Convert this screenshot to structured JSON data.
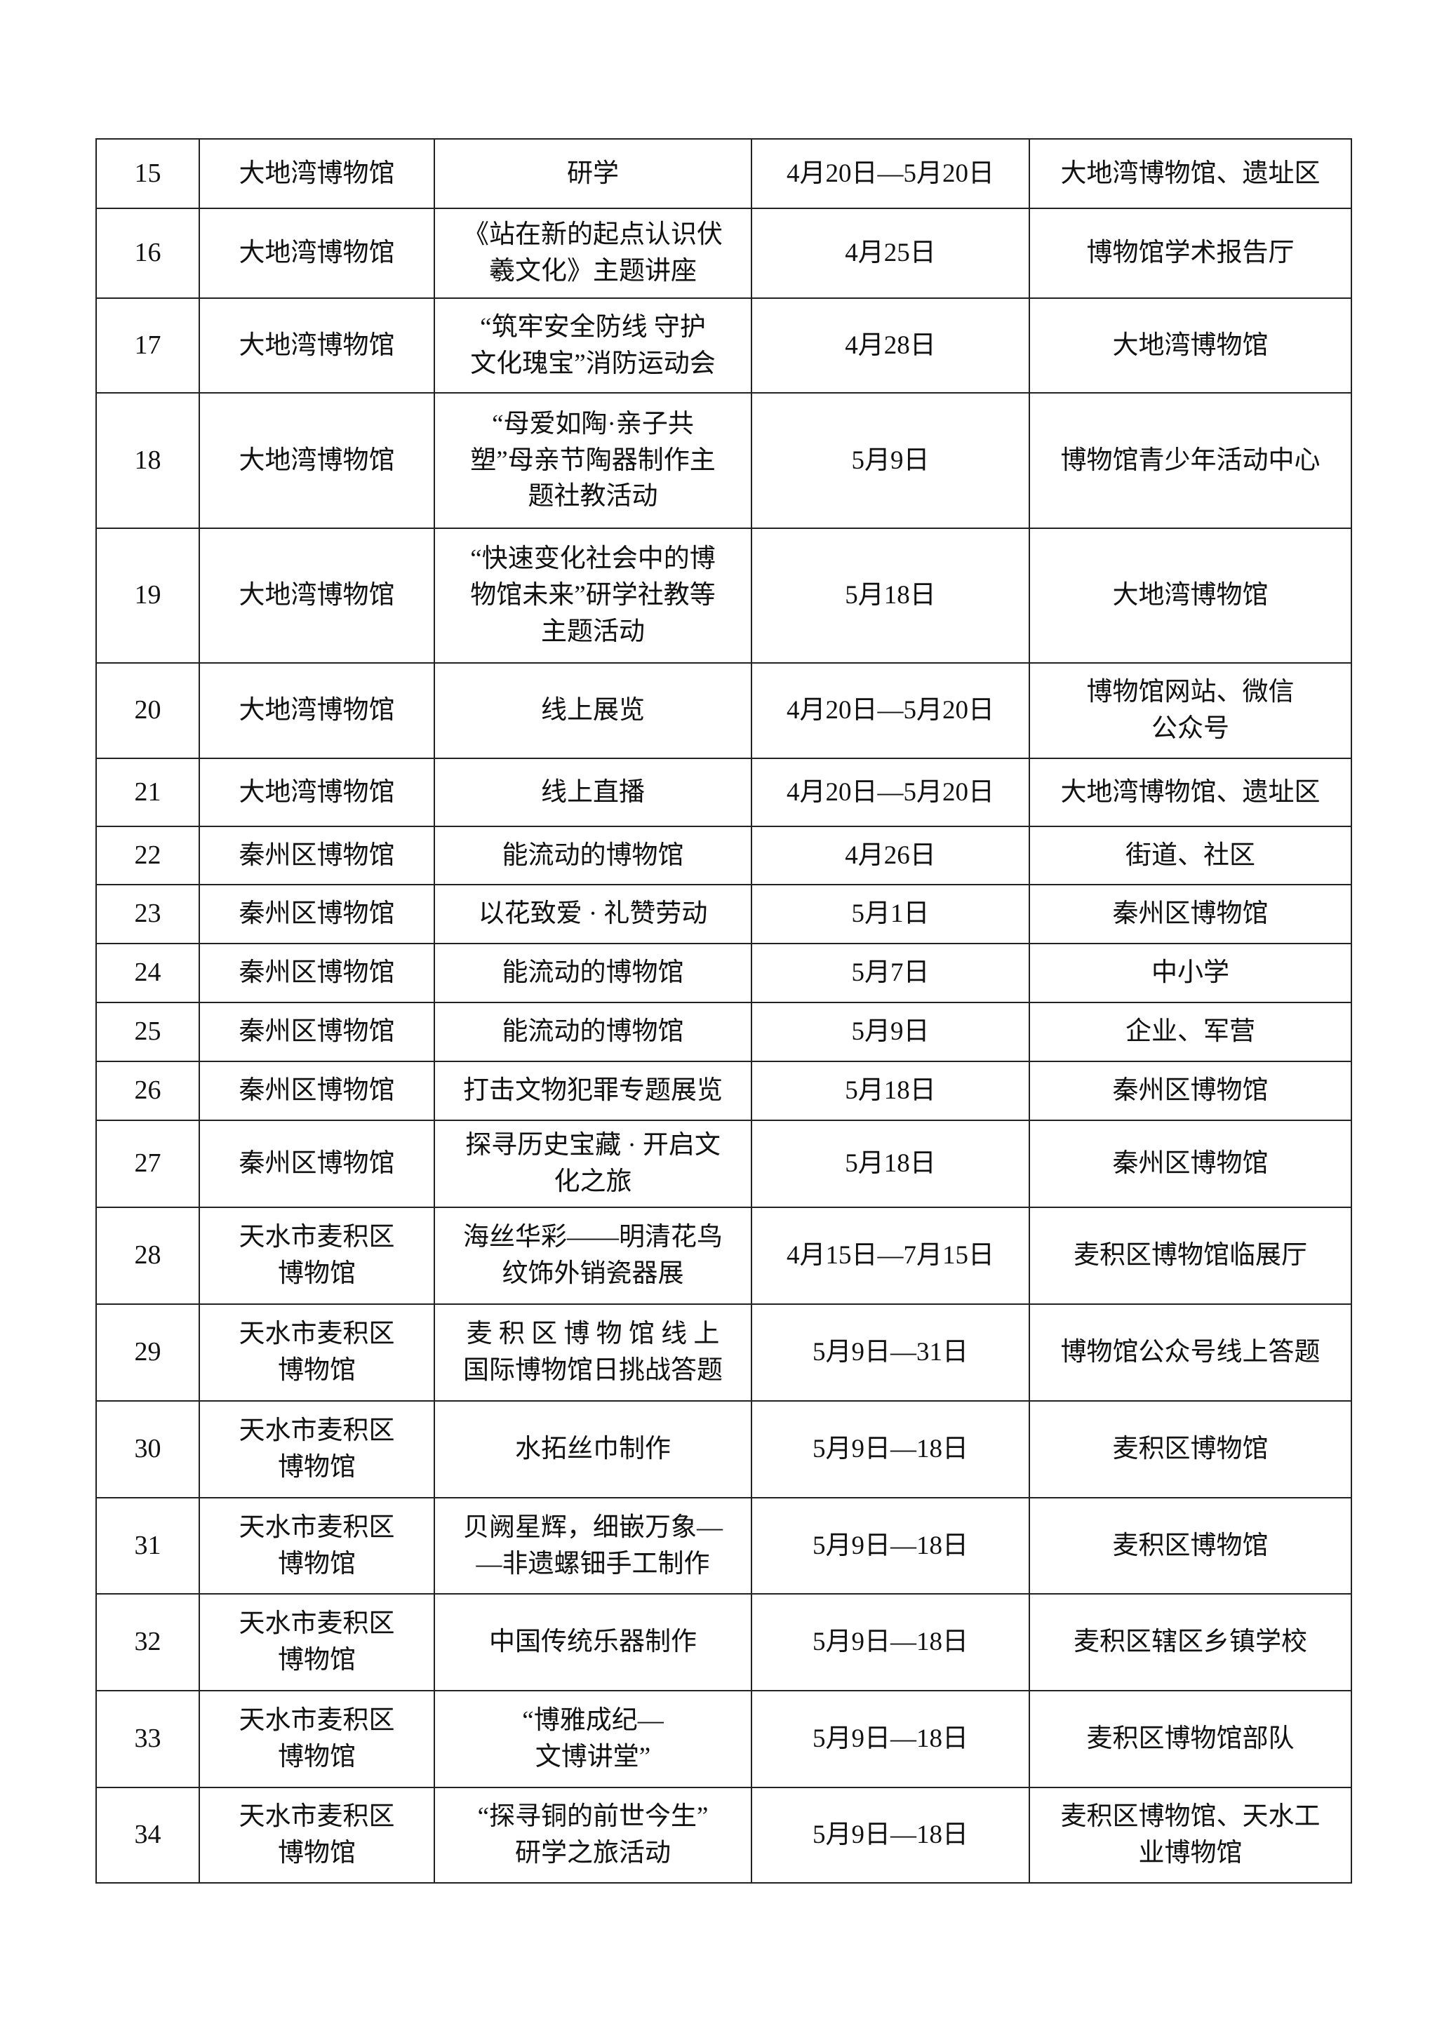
{
  "table": {
    "rows": [
      {
        "no": "15",
        "organizer": "大地湾博物馆",
        "activity": "研学",
        "date": "4月20日—5月20日",
        "location": "大地湾博物馆、遗址区"
      },
      {
        "no": "16",
        "organizer": "大地湾博物馆",
        "activity": "《站在新的起点认识伏\n羲文化》主题讲座",
        "date": "4月25日",
        "location": "博物馆学术报告厅"
      },
      {
        "no": "17",
        "organizer": "大地湾博物馆",
        "activity": "“筑牢安全防线 守护\n文化瑰宝”消防运动会",
        "date": "4月28日",
        "location": "大地湾博物馆"
      },
      {
        "no": "18",
        "organizer": "大地湾博物馆",
        "activity": "“母爱如陶·亲子共\n塑”母亲节陶器制作主\n题社教活动",
        "date": "5月9日",
        "location": "博物馆青少年活动中心"
      },
      {
        "no": "19",
        "organizer": "大地湾博物馆",
        "activity": "“快速变化社会中的博\n物馆未来”研学社教等\n主题活动",
        "date": "5月18日",
        "location": "大地湾博物馆"
      },
      {
        "no": "20",
        "organizer": "大地湾博物馆",
        "activity": "线上展览",
        "date": "4月20日—5月20日",
        "location": "博物馆网站、微信\n公众号"
      },
      {
        "no": "21",
        "organizer": "大地湾博物馆",
        "activity": "线上直播",
        "date": "4月20日—5月20日",
        "location": "大地湾博物馆、遗址区"
      },
      {
        "no": "22",
        "organizer": "秦州区博物馆",
        "activity": "能流动的博物馆",
        "date": "4月26日",
        "location": "街道、社区"
      },
      {
        "no": "23",
        "organizer": "秦州区博物馆",
        "activity": "以花致爱 · 礼赞劳动",
        "date": "5月1日",
        "location": "秦州区博物馆"
      },
      {
        "no": "24",
        "organizer": "秦州区博物馆",
        "activity": "能流动的博物馆",
        "date": "5月7日",
        "location": "中小学"
      },
      {
        "no": "25",
        "organizer": "秦州区博物馆",
        "activity": "能流动的博物馆",
        "date": "5月9日",
        "location": "企业、军营"
      },
      {
        "no": "26",
        "organizer": "秦州区博物馆",
        "activity": "打击文物犯罪专题展览",
        "date": "5月18日",
        "location": "秦州区博物馆"
      },
      {
        "no": "27",
        "organizer": "秦州区博物馆",
        "activity": "探寻历史宝藏 · 开启文\n化之旅",
        "date": "5月18日",
        "location": "秦州区博物馆"
      },
      {
        "no": "28",
        "organizer": "天水市麦积区\n博物馆",
        "activity": "海丝华彩——明清花鸟\n纹饰外销瓷器展",
        "date": "4月15日—7月15日",
        "location": "麦积区博物馆临展厅"
      },
      {
        "no": "29",
        "organizer": "天水市麦积区\n博物馆",
        "activity": "麦 积 区 博 物 馆 线 上\n国际博物馆日挑战答题",
        "date": "5月9日—31日",
        "location": "博物馆公众号线上答题"
      },
      {
        "no": "30",
        "organizer": "天水市麦积区\n博物馆",
        "activity": "水拓丝巾制作",
        "date": "5月9日—18日",
        "location": "麦积区博物馆"
      },
      {
        "no": "31",
        "organizer": "天水市麦积区\n博物馆",
        "activity": "贝阙星辉，细嵌万象—\n—非遗螺钿手工制作",
        "date": "5月9日—18日",
        "location": "麦积区博物馆"
      },
      {
        "no": "32",
        "organizer": "天水市麦积区\n博物馆",
        "activity": "中国传统乐器制作",
        "date": "5月9日—18日",
        "location": "麦积区辖区乡镇学校"
      },
      {
        "no": "33",
        "organizer": "天水市麦积区\n博物馆",
        "activity": "“博雅成纪—\n文博讲堂”",
        "date": "5月9日—18日",
        "location": "麦积区博物馆部队"
      },
      {
        "no": "34",
        "organizer": "天水市麦积区\n博物馆",
        "activity": "“探寻铜的前世今生”\n研学之旅活动",
        "date": "5月9日—18日",
        "location": "麦积区博物馆、天水工\n业博物馆"
      }
    ]
  }
}
